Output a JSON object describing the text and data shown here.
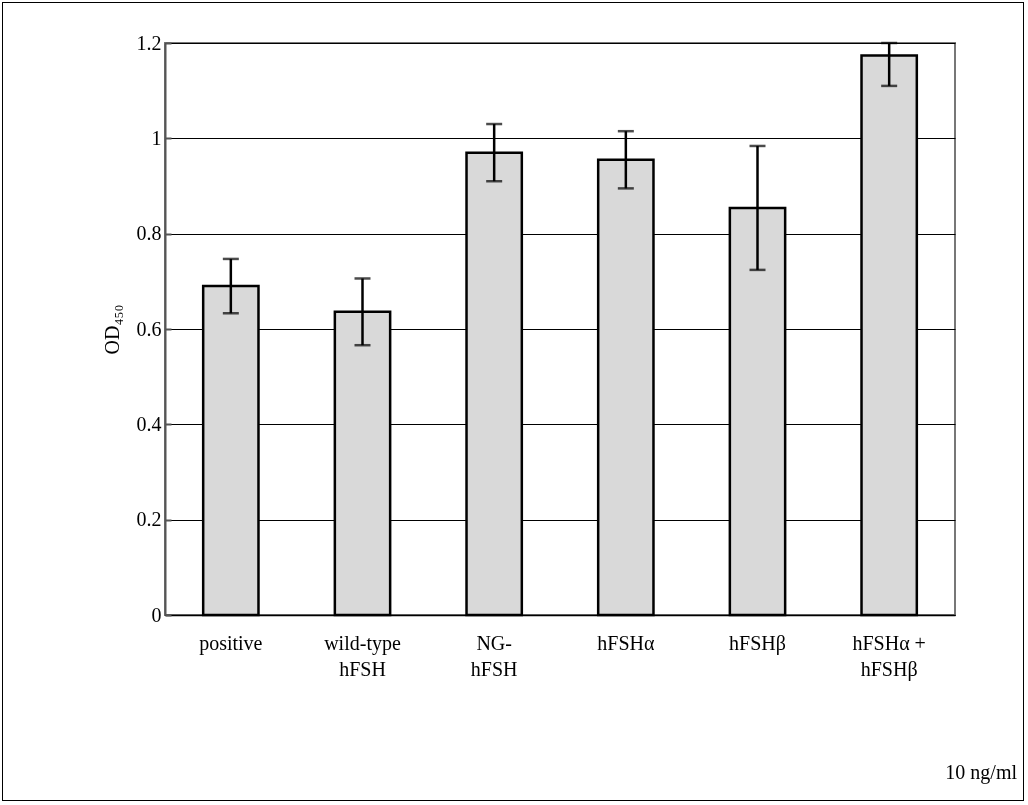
{
  "chart_data": {
    "type": "bar",
    "ylabel": "OD₄₅₀",
    "categories": [
      "positive",
      "wild-type\nhFSH",
      "NG-\nhFSH",
      "hFSHα",
      "hFSHβ",
      "hFSHα +\nhFSHβ"
    ],
    "values": [
      0.69,
      0.636,
      0.97,
      0.955,
      0.854,
      1.174
    ],
    "errors": [
      0.057,
      0.07,
      0.06,
      0.06,
      0.13,
      [
        1.11,
        1.2
      ]
    ],
    "color": "#d9d9d9",
    "ylim": [
      0,
      1.2
    ],
    "yticks": [
      0,
      0.2,
      0.4,
      0.6,
      0.8,
      1,
      1.2
    ],
    "grid": "y",
    "annotations": [
      "10 ng/ml"
    ]
  }
}
